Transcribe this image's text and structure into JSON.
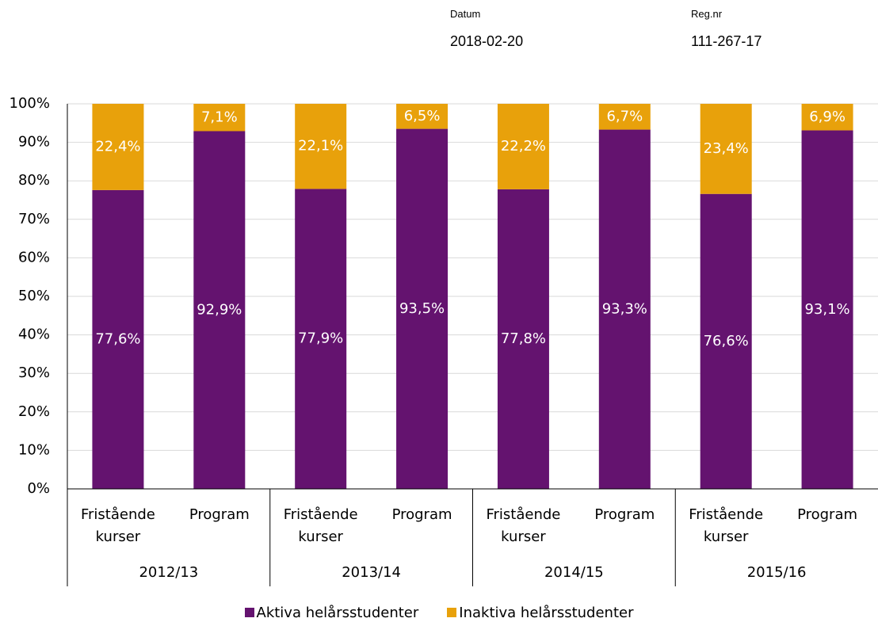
{
  "header": {
    "date_label": "Datum",
    "date": "2018-02-20",
    "reg_label": "Reg.nr",
    "reg": "111-267-17"
  },
  "chart_data": {
    "type": "stacked_bar",
    "categories": [
      "Fristående kurser",
      "Program",
      "Fristående kurser",
      "Program",
      "Fristående kurser",
      "Program",
      "Fristående kurser",
      "Program"
    ],
    "groups": [
      "2012/13",
      "2013/14",
      "2014/15",
      "2015/16"
    ],
    "series": [
      {
        "name": "Aktiva helårsstudenter",
        "color": "#64136f",
        "values": [
          77.6,
          92.9,
          77.9,
          93.5,
          77.8,
          93.3,
          76.6,
          93.1
        ],
        "value_labels": [
          "77,6%",
          "92,9%",
          "77,9%",
          "93,5%",
          "77,8%",
          "93,3%",
          "76,6%",
          "93,1%"
        ]
      },
      {
        "name": "Inaktiva helårsstudenter",
        "color": "#e8a10b",
        "values": [
          22.4,
          7.1,
          22.1,
          6.5,
          22.2,
          6.7,
          23.4,
          6.9
        ],
        "value_labels": [
          "22,4%",
          "7,1%",
          "22,1%",
          "6,5%",
          "22,2%",
          "6,7%",
          "23,4%",
          "6,9%"
        ]
      }
    ],
    "ylim": [
      0,
      100
    ],
    "yticks": [
      {
        "value": 0,
        "label": "0%"
      },
      {
        "value": 10,
        "label": "10%"
      },
      {
        "value": 20,
        "label": "20%"
      },
      {
        "value": 30,
        "label": "30%"
      },
      {
        "value": 40,
        "label": "40%"
      },
      {
        "value": 50,
        "label": "50%"
      },
      {
        "value": 60,
        "label": "60%"
      },
      {
        "value": 70,
        "label": "70%"
      },
      {
        "value": 80,
        "label": "80%"
      },
      {
        "value": 90,
        "label": "90%"
      },
      {
        "value": 100,
        "label": "100%"
      }
    ],
    "grid": true,
    "legend": "bottom"
  }
}
